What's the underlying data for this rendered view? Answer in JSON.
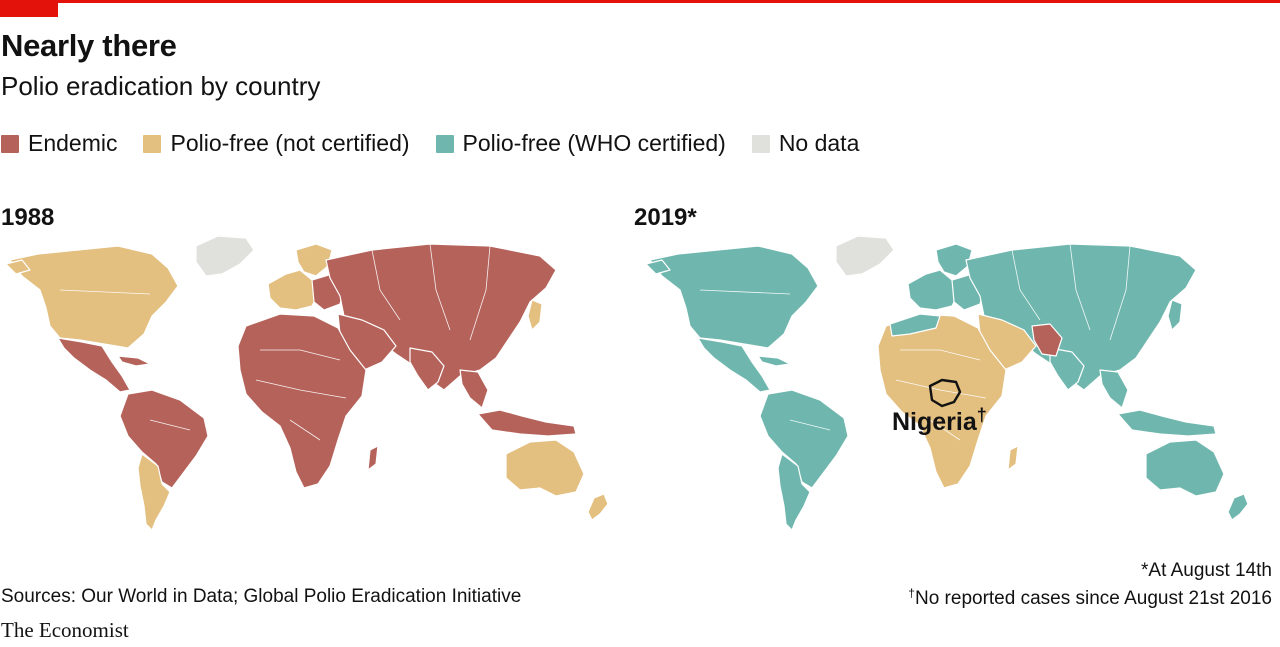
{
  "header": {
    "title": "Nearly there",
    "subtitle": "Polio eradication by country"
  },
  "legend": [
    {
      "label": "Endemic",
      "color": "#b5625a"
    },
    {
      "label": "Polio-free (not certified)",
      "color": "#e3bf80"
    },
    {
      "label": "Polio-free (WHO certified)",
      "color": "#6fb7ae"
    },
    {
      "label": "No data",
      "color": "#e0e0dc"
    }
  ],
  "maps": {
    "left_label": "1988",
    "right_label": "2019*",
    "annotation": "Nigeria",
    "annotation_mark": "†"
  },
  "colors": {
    "endemic": "#b5625a",
    "polio_free_not_certified": "#e3bf80",
    "polio_free_certified": "#6fb7ae",
    "no_data": "#e0e0dc",
    "accent": "#e3120b"
  },
  "footnotes": {
    "asterisk": "*At August 14th",
    "dagger_mark": "†",
    "dagger": "No reported cases since August 21st 2016"
  },
  "source": "Sources: Our World in Data; Global Polio Eradication Initiative",
  "brand": "The Economist"
}
